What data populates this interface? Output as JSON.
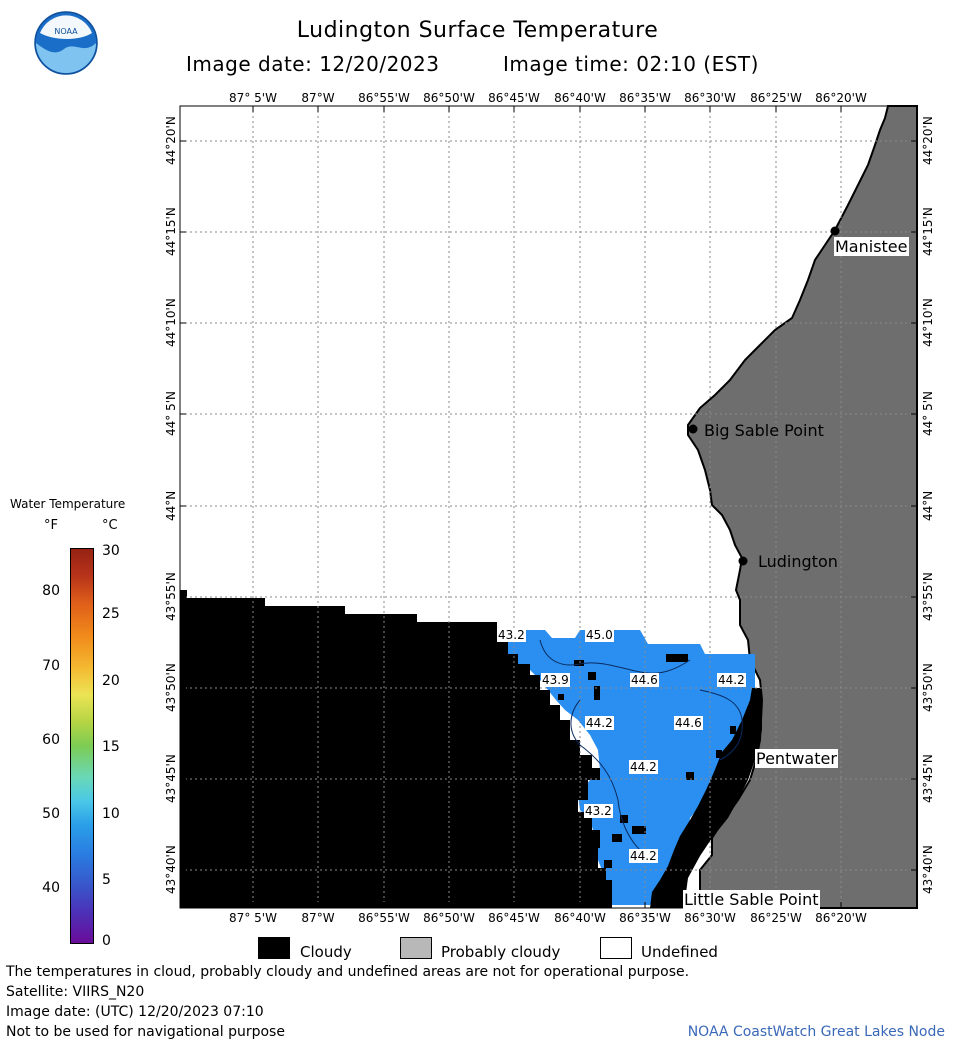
{
  "header": {
    "title": "Ludington Surface Temperature",
    "image_date": "Image date: 12/20/2023",
    "image_time": "Image time: 02:10 (EST)",
    "logo_text": "NOAA"
  },
  "map": {
    "lon_labels": [
      "87° 5'W",
      "87°W",
      "86°55'W",
      "86°50'W",
      "86°45'W",
      "86°40'W",
      "86°35'W",
      "86°30'W",
      "86°25'W",
      "86°20'W"
    ],
    "lat_labels": [
      "44°20'N",
      "44°15'N",
      "44°10'N",
      "44° 5'N",
      "44°N",
      "43°55'N",
      "43°50'N",
      "43°45'N",
      "43°40'N"
    ],
    "places": [
      {
        "name": "Manistee"
      },
      {
        "name": "Big Sable Point"
      },
      {
        "name": "Ludington"
      },
      {
        "name": "Pentwater"
      },
      {
        "name": "Little Sable Point"
      }
    ],
    "temperature_labels": [
      "43.2",
      "45.0",
      "43.9",
      "44.6",
      "44.2",
      "44.2",
      "44.6",
      "44.2",
      "43.2",
      "44.2"
    ],
    "colors": {
      "water": "#2a8ff0",
      "land": "#6e6e6e",
      "cloud": "#000000",
      "grid": "#8a8a8a"
    }
  },
  "legend": {
    "title": "Water Temperature",
    "f_unit": "°F",
    "c_unit": "°C",
    "f_ticks": [
      "80",
      "70",
      "60",
      "50",
      "40"
    ],
    "c_ticks": [
      "30",
      "25",
      "20",
      "15",
      "10",
      "5",
      "0"
    ],
    "c_range": [
      0,
      30
    ]
  },
  "key": {
    "cloudy": "Cloudy",
    "probably_cloudy": "Probably cloudy",
    "undefined": "Undefined"
  },
  "footer": {
    "note": "The temperatures in cloud, probably cloudy and undefined areas are not for operational purpose.",
    "satellite": "Satellite: VIIRS_N20",
    "utc_date": "Image date: (UTC) 12/20/2023  07:10",
    "nav_warning": "Not to be used for navigational purpose",
    "credit": "NOAA CoastWatch Great Lakes Node"
  }
}
